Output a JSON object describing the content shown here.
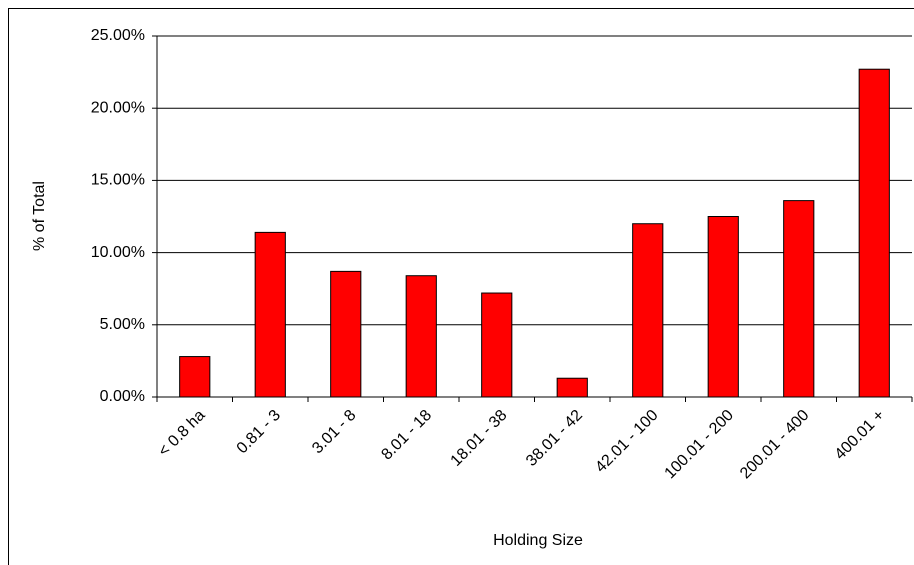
{
  "chart_data": {
    "type": "bar",
    "x_label": "Holding Size",
    "y_label": "% of Total",
    "categories": [
      "< 0.8 ha",
      "0.81 - 3",
      "3.01 - 8",
      "8.01 - 18",
      "18.01 - 38",
      "38.01 - 42",
      "42.01 - 100",
      "100.01 - 200",
      "200.01 - 400",
      "400.01 +"
    ],
    "values": [
      2.8,
      11.4,
      8.7,
      8.4,
      7.2,
      1.3,
      12.0,
      12.5,
      13.6,
      22.7
    ],
    "color": "#ff0000",
    "ylim": [
      0,
      25
    ],
    "yticks": [
      {
        "value": 0,
        "label": "0.00%"
      },
      {
        "value": 5,
        "label": "5.00%"
      },
      {
        "value": 10,
        "label": "10.00%"
      },
      {
        "value": 15,
        "label": "15.00%"
      },
      {
        "value": 20,
        "label": "20.00%"
      },
      {
        "value": 25,
        "label": "25.00%"
      }
    ],
    "grid": true
  }
}
